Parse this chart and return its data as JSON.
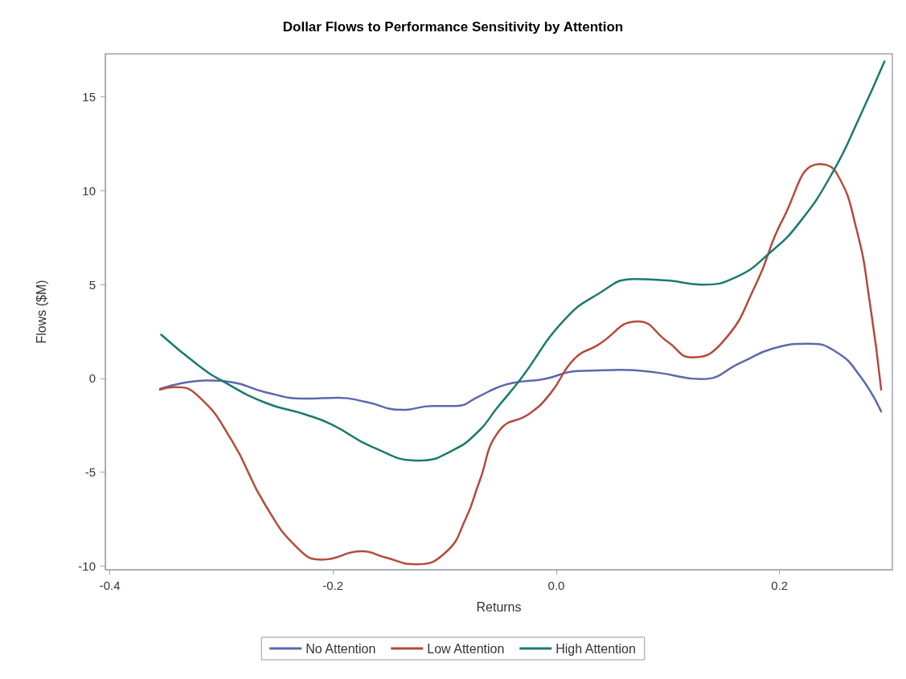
{
  "chart_data": {
    "type": "line",
    "title": "Dollar Flows to Performance Sensitivity by Attention",
    "xlabel": "Returns",
    "ylabel": "Flows ($M)",
    "xlim": [
      -0.404,
      0.301
    ],
    "xticks": [
      -0.4,
      -0.2,
      {
        "value": 0,
        "label": "0.0"
      },
      0.2
    ],
    "ylim": [
      -10.2,
      17.3
    ],
    "yticks": [
      -10,
      -5,
      0,
      5,
      10,
      15
    ],
    "grid": false,
    "legend": "bottom",
    "marker": "none",
    "line_style": "solid",
    "series": [
      {
        "name": "No Attention",
        "color": "#5b68ad",
        "x": [
          -0.355,
          -0.312,
          -0.291,
          -0.261,
          -0.225,
          -0.195,
          -0.171,
          -0.138,
          -0.111,
          -0.09,
          -0.069,
          -0.054,
          -0.039,
          -0.011,
          0.019,
          0.058,
          0.091,
          0.13,
          0.166,
          0.194,
          0.226,
          0.251,
          0.272,
          0.291
        ],
        "values": [
          -0.56,
          -0.11,
          -0.2,
          -0.73,
          -1.08,
          -1.03,
          -1.25,
          -1.68,
          -1.47,
          -1.47,
          -0.95,
          -0.52,
          -0.24,
          -0.04,
          0.39,
          0.45,
          0.3,
          -0.04,
          0.86,
          1.59,
          1.85,
          1.4,
          0.13,
          -1.77
        ]
      },
      {
        "name": "Low Attention",
        "color": "#b44a3c",
        "x": [
          -0.355,
          -0.342,
          -0.321,
          -0.291,
          -0.261,
          -0.231,
          -0.21,
          -0.174,
          -0.153,
          -0.126,
          -0.099,
          -0.081,
          -0.069,
          -0.051,
          -0.024,
          -0.005,
          0.016,
          0.037,
          0.073,
          0.1,
          0.121,
          0.149,
          0.179,
          0.203,
          0.236,
          0.251,
          0.269,
          0.281,
          0.291
        ],
        "values": [
          -0.6,
          -0.47,
          -0.93,
          -3.28,
          -6.72,
          -9.09,
          -9.66,
          -9.22,
          -9.55,
          -9.91,
          -9.27,
          -7.46,
          -5.52,
          -2.78,
          -1.88,
          -0.78,
          1.03,
          1.77,
          3.04,
          1.94,
          1.12,
          1.94,
          5.04,
          8.49,
          11.42,
          10.95,
          7.93,
          3.97,
          -0.6
        ]
      },
      {
        "name": "High Attention",
        "color": "#1b7a6e",
        "x": [
          -0.354,
          -0.321,
          -0.3,
          -0.261,
          -0.225,
          -0.201,
          -0.165,
          -0.123,
          -0.093,
          -0.069,
          -0.054,
          -0.032,
          0.006,
          0.037,
          0.07,
          0.1,
          0.13,
          0.161,
          0.191,
          0.218,
          0.248,
          0.272,
          0.294
        ],
        "values": [
          2.33,
          0.71,
          -0.11,
          -1.29,
          -1.92,
          -2.46,
          -3.65,
          -4.38,
          -3.84,
          -2.78,
          -1.64,
          -0.04,
          3.04,
          4.48,
          5.3,
          5.22,
          5.0,
          5.4,
          6.68,
          8.32,
          11.03,
          13.97,
          16.9
        ]
      }
    ]
  }
}
